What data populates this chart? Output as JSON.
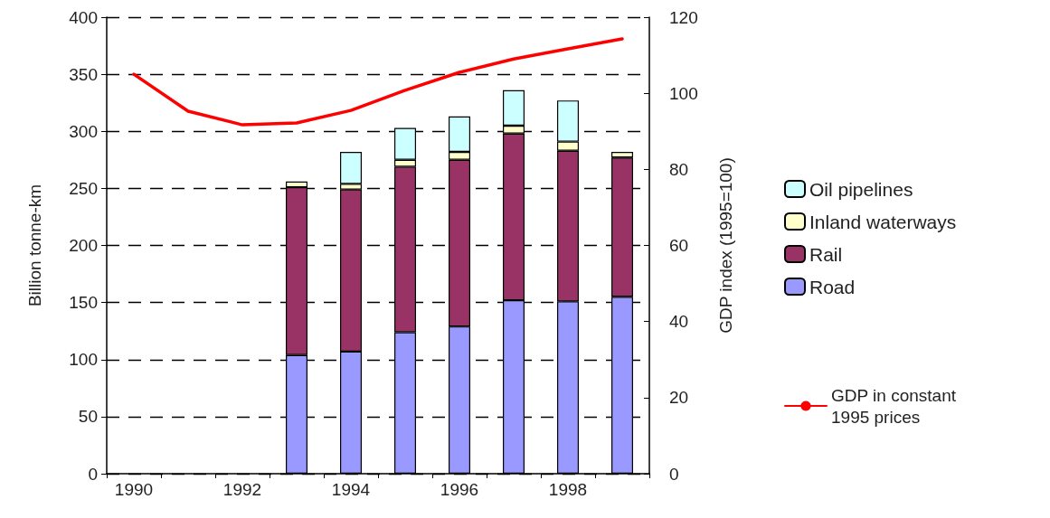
{
  "chart_data": {
    "type": "bar",
    "stacked": true,
    "ylabel": "Billion tonne-km",
    "y2label": "GDP index (1995=100)",
    "categories": [
      "1990",
      null,
      "1992",
      null,
      "1994",
      null,
      "1996",
      null,
      "1998",
      null
    ],
    "series": [
      {
        "name": "Road",
        "color": "#9999ff",
        "values": [
          null,
          null,
          null,
          104,
          107,
          124,
          129,
          152,
          151,
          155
        ]
      },
      {
        "name": "Rail",
        "color": "#993366",
        "values": [
          null,
          null,
          null,
          147,
          142,
          145,
          146,
          146,
          132,
          122
        ]
      },
      {
        "name": "Inland waterways",
        "color": "#ffffcc",
        "values": [
          null,
          null,
          null,
          5,
          5,
          6,
          7,
          7,
          8,
          5
        ]
      },
      {
        "name": "Oil pipelines",
        "color": "#ccffff",
        "values": [
          null,
          null,
          null,
          null,
          28,
          28,
          31,
          31,
          36,
          null
        ]
      },
      {
        "name": "GDP in constant 1995 prices",
        "type": "line",
        "axis": "y2",
        "color": "#ff0000",
        "values": [
          105,
          95.3,
          91.7,
          92.2,
          95.5,
          100.8,
          105.5,
          109,
          111.7,
          114.3
        ]
      }
    ],
    "ylim": [
      0,
      400
    ],
    "yticks": [
      0,
      50,
      100,
      150,
      200,
      250,
      300,
      350,
      400
    ],
    "y2lim": [
      0,
      120
    ],
    "y2ticks": [
      0,
      20,
      40,
      60,
      80,
      100,
      120
    ],
    "grid": "y",
    "legend": "right",
    "marker": "none",
    "line_style": "solid"
  }
}
